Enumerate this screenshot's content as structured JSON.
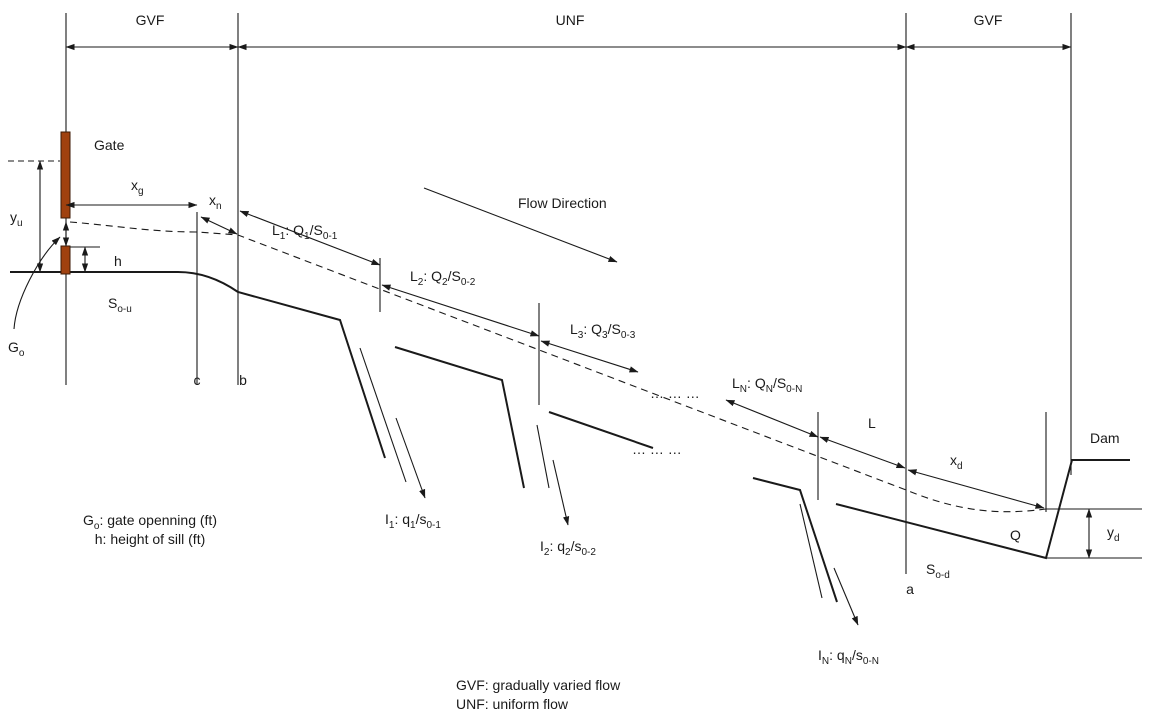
{
  "zones": {
    "gvf_upstream": "GVF",
    "unf": "UNF",
    "gvf_downstream": "GVF"
  },
  "labels": {
    "gate": "Gate",
    "flow_direction": "Flow Direction",
    "dam": "Dam",
    "q_main": "Q",
    "L": "L",
    "section_c": "c",
    "section_b": "b",
    "section_a": "a",
    "dots_upper": "… … …",
    "dots_lower": "… … …"
  },
  "symbols": {
    "yu": {
      "base": "y",
      "sub": "u"
    },
    "h": "h",
    "So_u": {
      "base": "S",
      "sub": "o-u"
    },
    "Go": {
      "base": "G",
      "sub": "o"
    },
    "xg": {
      "base": "x",
      "sub": "g"
    },
    "xn": {
      "base": "x",
      "sub": "n"
    },
    "xd": {
      "base": "x",
      "sub": "d"
    },
    "yd": {
      "base": "y",
      "sub": "d"
    },
    "So_d": {
      "base": "S",
      "sub": "o-d"
    }
  },
  "reaches": [
    {
      "L": {
        "base": "L",
        "sub": "1"
      },
      "sep": ": ",
      "Q": {
        "base": "Q",
        "sub": "1"
      },
      "S": {
        "base": "/S",
        "sub": "0-1"
      }
    },
    {
      "L": {
        "base": "L",
        "sub": "2"
      },
      "sep": ": ",
      "Q": {
        "base": "Q",
        "sub": "2"
      },
      "S": {
        "base": "/S",
        "sub": "0-2"
      }
    },
    {
      "L": {
        "base": "L",
        "sub": "3"
      },
      "sep": ": ",
      "Q": {
        "base": "Q",
        "sub": "3"
      },
      "S": {
        "base": "/S",
        "sub": "0-3"
      }
    },
    {
      "L": {
        "base": "L",
        "sub": "N"
      },
      "sep": ": ",
      "Q": {
        "base": "Q",
        "sub": "N"
      },
      "S": {
        "base": "/S",
        "sub": "0-N"
      }
    }
  ],
  "laterals": [
    {
      "I": {
        "base": "I",
        "sub": "1"
      },
      "sep": ": ",
      "q": {
        "base": "q",
        "sub": "1"
      },
      "s": {
        "base": "/s",
        "sub": "0-1"
      }
    },
    {
      "I": {
        "base": "I",
        "sub": "2"
      },
      "sep": ": ",
      "q": {
        "base": "q",
        "sub": "2"
      },
      "s": {
        "base": "/s",
        "sub": "0-2"
      }
    },
    {
      "I": {
        "base": "I",
        "sub": "N"
      },
      "sep": ": ",
      "q": {
        "base": "q",
        "sub": "N"
      },
      "s": {
        "base": "/s",
        "sub": "0-N"
      }
    }
  ],
  "legend_left": {
    "go": {
      "base": "G",
      "sub": "o",
      "rest": ": gate openning (ft)"
    },
    "h": "h: height of sill (ft)"
  },
  "legend_bottom": {
    "gvf": "GVF: gradually varied flow",
    "unf": "UNF: uniform flow"
  },
  "colors": {
    "gate": "#a0410f",
    "line": "#1a1a1a"
  }
}
